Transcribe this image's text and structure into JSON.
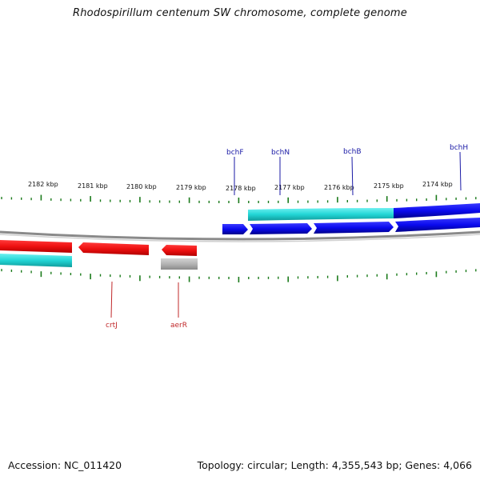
{
  "title": "Rhodospirillum centenum SW chromosome, complete genome",
  "footer": {
    "accession": "Accession: NC_011420",
    "summary": "Topology: circular; Length: 4,355,543 bp; Genes: 4,066"
  },
  "scale_labels": [
    "2182 kbp",
    "2181 kbp",
    "2180 kbp",
    "2179 kbp",
    "2178 kbp",
    "2177 kbp",
    "2176 kbp",
    "2175 kbp",
    "2174 kbp"
  ],
  "genes_forward": [
    "bchF",
    "bchN",
    "bchB",
    "bchH"
  ],
  "genes_reverse": [
    "crtJ",
    "aerR"
  ],
  "colors": {
    "forward_gene": "#0a0aee",
    "reverse_gene": "#ee1010",
    "forward_track": "#22d6d6",
    "grey_feature": "#b4b4b4",
    "tick": "#1a7a1a",
    "backbone": "#8a8a8a",
    "forward_label": "#1a1aa6",
    "reverse_label": "#c0282a"
  }
}
